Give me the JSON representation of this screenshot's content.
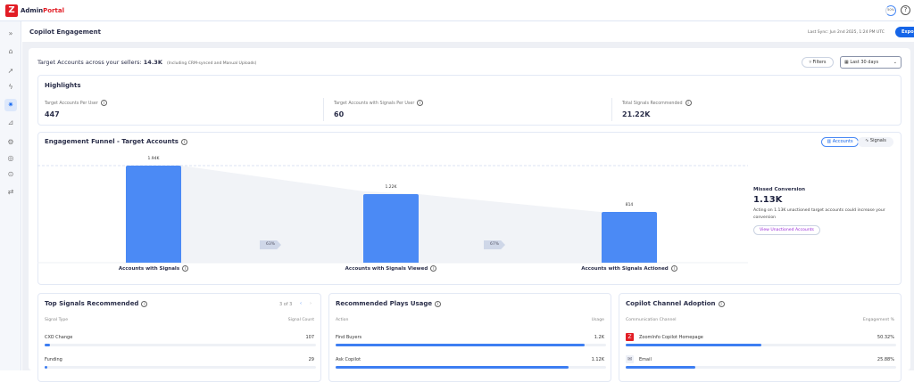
{
  "app": {
    "logo_letter": "Z",
    "brand_a": "Admin",
    "brand_b": "Portal",
    "progress": "50%",
    "help": "?"
  },
  "colors": {
    "brand": "#e21d25",
    "accent": "#1565e8",
    "bar": "#4b8af5"
  },
  "sidebar": {
    "items": [
      {
        "icon": "expand-icon",
        "glyph": "»"
      },
      {
        "icon": "home-icon",
        "glyph": "⌂"
      },
      {
        "icon": "rocket-icon",
        "glyph": "➚"
      },
      {
        "icon": "lightning-icon",
        "glyph": "ϟ"
      },
      {
        "icon": "copilot-icon",
        "glyph": "✷",
        "active": true
      },
      {
        "icon": "chart-icon",
        "glyph": "⊿"
      },
      {
        "icon": "gear-icon",
        "glyph": "⚙"
      },
      {
        "icon": "user-icon",
        "glyph": "◎"
      },
      {
        "icon": "shield-icon",
        "glyph": "⊙"
      },
      {
        "icon": "transfer-icon",
        "glyph": "⇄"
      }
    ]
  },
  "header": {
    "title": "Copilot Engagement",
    "last_sync": "Last Sync: Jun 2nd 2025, 1:24 PM UTC",
    "export_label": "Export"
  },
  "summary": {
    "prefix": "Target Accounts across your sellers: ",
    "value": "14.3K",
    "note": "(Including CRM-synced and Manual Uploads)"
  },
  "filters": {
    "filters_label": "Filters",
    "date_range": "Last 30 days"
  },
  "highlights": {
    "title": "Highlights",
    "items": [
      {
        "label": "Target Accounts Per User",
        "value": "447"
      },
      {
        "label": "Target Accounts with Signals Per User",
        "value": "60"
      },
      {
        "label": "Total Signals Recommended",
        "value": "21.22K"
      }
    ]
  },
  "funnel": {
    "title": "Engagement Funnel - Target Accounts",
    "toggle": [
      "Accounts",
      "Signals"
    ],
    "selected": "Accounts",
    "chart_data": {
      "type": "bar",
      "categories": [
        "Accounts with Signals",
        "Accounts with Signals Viewed",
        "Accounts with Signals Actioned"
      ],
      "values": [
        1940,
        1220,
        814
      ],
      "value_labels": [
        "1.94K",
        "1.22K",
        "814"
      ],
      "conversions": [
        "63%",
        "67%"
      ]
    },
    "missed": {
      "title": "Missed Conversion",
      "value": "1.13K",
      "desc": "Acting on 1.13K unactioned target accounts could increase your conversion",
      "button": "View Unactioned Accounts"
    }
  },
  "top_signals": {
    "title": "Top Signals Recommended",
    "pager": "3 of 3",
    "col1": "Signal Type",
    "col2": "Signal Count",
    "rows": [
      {
        "label": "CXO Change",
        "value": "107",
        "pct": 2
      },
      {
        "label": "Funding",
        "value": "29",
        "pct": 0.6
      }
    ]
  },
  "plays": {
    "title": "Recommended Plays Usage",
    "col1": "Action",
    "col2": "Usage",
    "rows": [
      {
        "label": "Find Buyers",
        "value": "1.2K",
        "pct": 92
      },
      {
        "label": "Ask Copilot",
        "value": "1.12K",
        "pct": 86
      }
    ]
  },
  "channels": {
    "title": "Copilot Channel Adoption",
    "col1": "Communication Channel",
    "col2": "Engagement %",
    "rows": [
      {
        "label": "ZoomInfo Copilot Homepage",
        "value": "50.32%",
        "pct": 50.32,
        "icon": "zoominfo-icon"
      },
      {
        "label": "Email",
        "value": "25.88%",
        "pct": 25.88,
        "icon": "email-icon"
      }
    ]
  }
}
